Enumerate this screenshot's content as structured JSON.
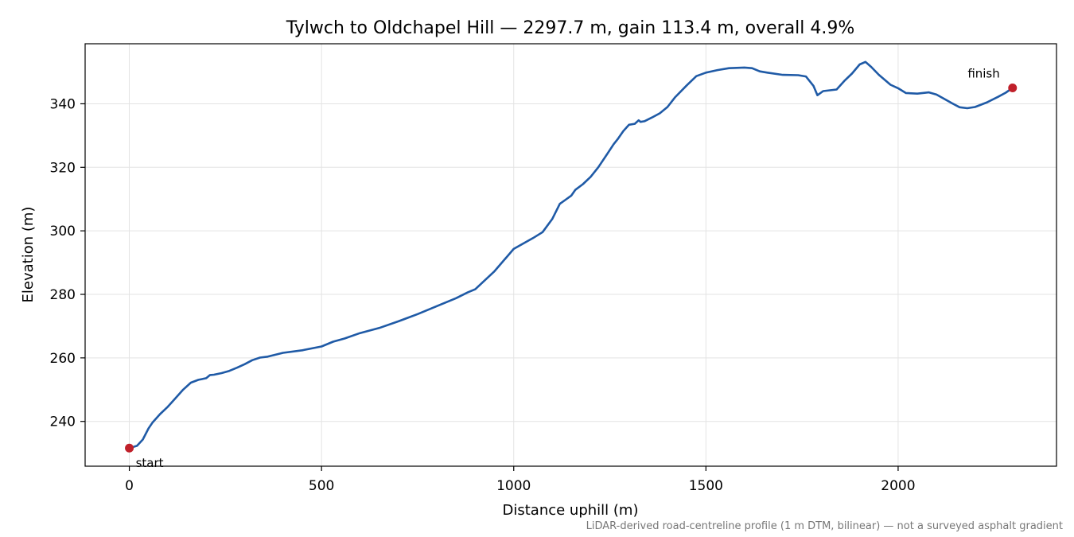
{
  "chart_data": {
    "type": "line",
    "title": "Tylwch to Oldchapel Hill — 2297.7 m, gain 113.4 m, overall 4.9%",
    "xlabel": "Distance uphill (m)",
    "ylabel": "Elevation (m)",
    "xlim": [
      -115,
      2412
    ],
    "ylim": [
      225.9,
      358.9
    ],
    "xticks": [
      0,
      500,
      1000,
      1500,
      2000
    ],
    "yticks": [
      240,
      260,
      280,
      300,
      320,
      340
    ],
    "grid": true,
    "line_color": "#1f5aa6",
    "marker_color": "#c0202a",
    "series": [
      {
        "x": [
          0,
          20,
          35,
          50,
          60,
          80,
          100,
          120,
          140,
          160,
          180,
          200,
          210,
          220,
          240,
          260,
          280,
          300,
          320,
          340,
          360,
          400,
          450,
          500,
          530,
          560,
          600,
          650,
          700,
          750,
          800,
          850,
          880,
          900,
          950,
          1000,
          1050,
          1075,
          1100,
          1120,
          1135,
          1150,
          1160,
          1180,
          1200,
          1220,
          1240,
          1260,
          1270,
          1285,
          1300,
          1315,
          1325,
          1330,
          1340,
          1360,
          1380,
          1400,
          1420,
          1450,
          1475,
          1500,
          1530,
          1560,
          1600,
          1620,
          1640,
          1660,
          1700,
          1740,
          1760,
          1780,
          1790,
          1805,
          1840,
          1860,
          1880,
          1900,
          1915,
          1930,
          1950,
          1980,
          2000,
          2020,
          2050,
          2080,
          2100,
          2140,
          2160,
          2180,
          2200,
          2230,
          2260,
          2280,
          2297.7
        ],
        "y": [
          231.6,
          232.3,
          234.3,
          237.8,
          239.6,
          242.3,
          244.6,
          247.3,
          250.0,
          252.2,
          253.1,
          253.6,
          254.6,
          254.7,
          255.2,
          255.9,
          256.9,
          258.0,
          259.3,
          260.1,
          260.4,
          261.6,
          262.4,
          263.6,
          265.1,
          266.1,
          267.8,
          269.4,
          271.5,
          273.8,
          276.3,
          278.8,
          280.6,
          281.6,
          287.3,
          294.3,
          297.7,
          299.6,
          303.7,
          308.5,
          309.8,
          311.1,
          312.9,
          314.7,
          317.0,
          320.0,
          323.6,
          327.3,
          328.8,
          331.4,
          333.4,
          333.7,
          334.8,
          334.3,
          334.5,
          335.7,
          337.0,
          339.0,
          342.1,
          345.8,
          348.7,
          349.8,
          350.6,
          351.2,
          351.4,
          351.2,
          350.2,
          349.8,
          349.1,
          349.0,
          348.6,
          345.6,
          342.7,
          344.0,
          344.5,
          347.2,
          349.5,
          352.4,
          353.2,
          351.6,
          349.1,
          346.0,
          344.9,
          343.4,
          343.2,
          343.6,
          342.9,
          340.2,
          338.9,
          338.6,
          339.0,
          340.4,
          342.2,
          343.5,
          345.0
        ]
      }
    ],
    "annotations": [
      {
        "text": "start",
        "x": 0,
        "y": 231.6
      },
      {
        "text": "finish",
        "x": 2297.7,
        "y": 345.0
      }
    ],
    "footnote": "LiDAR-derived road-centreline profile (1 m DTM, bilinear) — not a surveyed asphalt gradient"
  }
}
